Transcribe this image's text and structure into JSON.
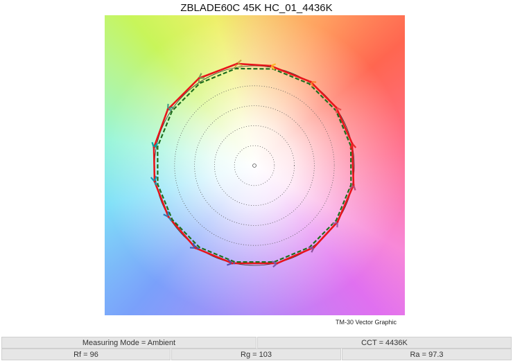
{
  "chart_data": {
    "type": "scatter",
    "title": "ZBLADE60C 45K HC_01_4436K",
    "caption": "TM-30 Vector Graphic",
    "grid": "concentric dotted circles",
    "grid_rings": [
      0.2,
      0.4,
      0.6,
      0.8
    ],
    "axis_range": [
      -1.5,
      1.5
    ],
    "reference_radius": 1.0,
    "hue_bins": 16,
    "test_vertices": [
      {
        "bin": 1,
        "x": 0.979,
        "y": 0.222
      },
      {
        "bin": 2,
        "x": 0.819,
        "y": 0.583
      },
      {
        "bin": 3,
        "x": 0.563,
        "y": 0.84
      },
      {
        "bin": 4,
        "x": 0.16,
        "y": 1.0
      },
      {
        "bin": 5,
        "x": -0.174,
        "y": 1.021
      },
      {
        "bin": 6,
        "x": -0.556,
        "y": 0.875
      },
      {
        "bin": 7,
        "x": -0.868,
        "y": 0.563
      },
      {
        "bin": 8,
        "x": -1.007,
        "y": 0.181
      },
      {
        "bin": 9,
        "x": -1.0,
        "y": -0.16
      },
      {
        "bin": 10,
        "x": -0.861,
        "y": -0.514
      },
      {
        "bin": 11,
        "x": -0.59,
        "y": -0.826
      },
      {
        "bin": 12,
        "x": -0.222,
        "y": -0.979
      },
      {
        "bin": 13,
        "x": 0.229,
        "y": -0.979
      },
      {
        "bin": 14,
        "x": 0.597,
        "y": -0.819
      },
      {
        "bin": 15,
        "x": 0.833,
        "y": -0.563
      },
      {
        "bin": 16,
        "x": 0.993,
        "y": -0.194
      }
    ],
    "colors": {
      "test": "#e8141a",
      "reference": "#1e6e1e",
      "reference_circle": "#333333",
      "bins": [
        "#e62828",
        "#e74b4b",
        "#fb812e",
        "#ffb529",
        "#cba946",
        "#7e9e56",
        "#419e85",
        "#00a6a5",
        "#0f9ab8",
        "#2e7bb6",
        "#3e5ab5",
        "#5a4ea8",
        "#7c5aa6",
        "#8b4f9b",
        "#9e5fa8",
        "#b54d74"
      ]
    }
  },
  "metrics": {
    "measuring_mode": "Measuring Mode = Ambient",
    "cct": "CCT = 4436K",
    "rf": "Rf = 96",
    "rg": "Rg = 103",
    "ra": "Ra = 97.3"
  }
}
